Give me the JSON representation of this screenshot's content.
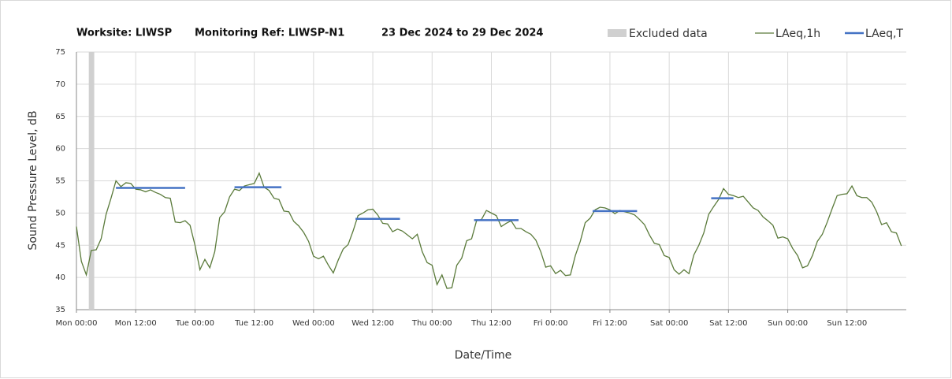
{
  "chart_data": {
    "type": "line",
    "title_parts": [
      "Worksite: LIWSP",
      "Monitoring Ref: LIWSP-N1",
      "23 Dec 2024 to 29 Dec 2024"
    ],
    "x_label": "Date/Time",
    "y_label": "Sound Pressure Level, dB",
    "xlim": [
      0,
      168
    ],
    "ylim": [
      35,
      75
    ],
    "yticks": [
      35,
      40,
      45,
      50,
      55,
      60,
      65,
      70,
      75
    ],
    "xticks": [
      {
        "value": 0,
        "label": "Mon 00:00"
      },
      {
        "value": 12,
        "label": "Mon 12:00"
      },
      {
        "value": 24,
        "label": "Tue 00:00"
      },
      {
        "value": 36,
        "label": "Tue 12:00"
      },
      {
        "value": 48,
        "label": "Wed 00:00"
      },
      {
        "value": 60,
        "label": "Wed 12:00"
      },
      {
        "value": 72,
        "label": "Thu 00:00"
      },
      {
        "value": 84,
        "label": "Thu 12:00"
      },
      {
        "value": 96,
        "label": "Fri 00:00"
      },
      {
        "value": 108,
        "label": "Fri 12:00"
      },
      {
        "value": 120,
        "label": "Sat 00:00"
      },
      {
        "value": 132,
        "label": "Sat 12:00"
      },
      {
        "value": 144,
        "label": "Sun 00:00"
      },
      {
        "value": 156,
        "label": "Sun 12:00"
      }
    ],
    "grid": true,
    "excluded": {
      "name": "Excluded data",
      "color": "#d0d0d0",
      "start": 2.5,
      "end": 3.6
    },
    "x": [
      0,
      1,
      2,
      3,
      4,
      5,
      6,
      7,
      8,
      9,
      10,
      11,
      12,
      13,
      14,
      15,
      16,
      17,
      18,
      19,
      20,
      21,
      22,
      23,
      24,
      25,
      26,
      27,
      28,
      29,
      30,
      31,
      32,
      33,
      34,
      35,
      36,
      37,
      38,
      39,
      40,
      41,
      42,
      43,
      44,
      45,
      46,
      47,
      48,
      49,
      50,
      51,
      52,
      53,
      54,
      55,
      56,
      57,
      58,
      59,
      60,
      61,
      62,
      63,
      64,
      65,
      66,
      67,
      68,
      69,
      70,
      71,
      72,
      73,
      74,
      75,
      76,
      77,
      78,
      79,
      80,
      81,
      82,
      83,
      84,
      85,
      86,
      87,
      88,
      89,
      90,
      91,
      92,
      93,
      94,
      95,
      96,
      97,
      98,
      99,
      100,
      101,
      102,
      103,
      104,
      105,
      106,
      107,
      108,
      109,
      110,
      111,
      112,
      113,
      114,
      115,
      116,
      117,
      118,
      119,
      120,
      121,
      122,
      123,
      124,
      125,
      126,
      127,
      128,
      129,
      130,
      131,
      132,
      133,
      134,
      135,
      136,
      137,
      138,
      139,
      140,
      141,
      142,
      143,
      144,
      145,
      146,
      147,
      148,
      149,
      150,
      151,
      152,
      153,
      154,
      155,
      156,
      157,
      158,
      159,
      160,
      161,
      162,
      163,
      164,
      165,
      166,
      167
    ],
    "series": [
      {
        "name": "LAeq,1h",
        "color": "#5a7a3a",
        "values": [
          47.9,
          42.5,
          40.4,
          44.2,
          44.3,
          46,
          49.8,
          52.3,
          55,
          54.1,
          54.7,
          54.6,
          53.7,
          53.6,
          53.3,
          53.6,
          53.2,
          52.9,
          52.4,
          52.3,
          48.6,
          48.5,
          48.8,
          48.1,
          45,
          41.2,
          42.8,
          41.5,
          44,
          49.3,
          50.2,
          52.5,
          53.7,
          53.5,
          54.2,
          54.4,
          54.6,
          56.2,
          54,
          53.5,
          52.3,
          52.1,
          50.3,
          50.2,
          48.7,
          48,
          47,
          45.6,
          43.3,
          42.9,
          43.3,
          41.9,
          40.7,
          42.7,
          44.4,
          45.1,
          47.2,
          49.6,
          50,
          50.5,
          50.6,
          49.7,
          48.4,
          48.3,
          47.1,
          47.5,
          47.2,
          46.6,
          46,
          46.7,
          44,
          42.3,
          41.9,
          38.9,
          40.4,
          38.3,
          38.4,
          41.9,
          43,
          45.7,
          46,
          48.8,
          49,
          50.4,
          50,
          49.6,
          47.9,
          48.4,
          48.8,
          47.6,
          47.6,
          47.1,
          46.7,
          45.8,
          44,
          41.6,
          41.8,
          40.6,
          41.1,
          40.3,
          40.4,
          43.4,
          45.6,
          48.5,
          49.2,
          50.5,
          50.9,
          50.8,
          50.5,
          49.9,
          50.4,
          50.2,
          50,
          49.7,
          49,
          48.2,
          46.6,
          45.3,
          45.1,
          43.4,
          43.1,
          41.2,
          40.5,
          41.2,
          40.6,
          43.5,
          45,
          46.9,
          49.8,
          51,
          52.1,
          53.8,
          52.9,
          52.7,
          52.4,
          52.6,
          51.7,
          50.8,
          50.4,
          49.4,
          48.8,
          48.1,
          46.1,
          46.3,
          46,
          44.5,
          43.4,
          41.5,
          41.8,
          43.4,
          45.6,
          46.7,
          48.6,
          50.7,
          52.7,
          52.9,
          53,
          54.2,
          52.7,
          52.4,
          52.4,
          51.7,
          50.2,
          48.2,
          48.5,
          47.1,
          46.9,
          44.9
        ]
      },
      {
        "name": "LAeq,T",
        "color": "#4472c4",
        "segments": [
          {
            "start": 8,
            "end": 22,
            "value": 53.9
          },
          {
            "start": 32,
            "end": 41.5,
            "value": 54
          },
          {
            "start": 56.5,
            "end": 65.5,
            "value": 49.1
          },
          {
            "start": 80.5,
            "end": 89.5,
            "value": 48.9
          },
          {
            "start": 104.5,
            "end": 113.5,
            "value": 50.3
          },
          {
            "start": 128.5,
            "end": 133,
            "value": 52.3
          }
        ]
      }
    ]
  }
}
